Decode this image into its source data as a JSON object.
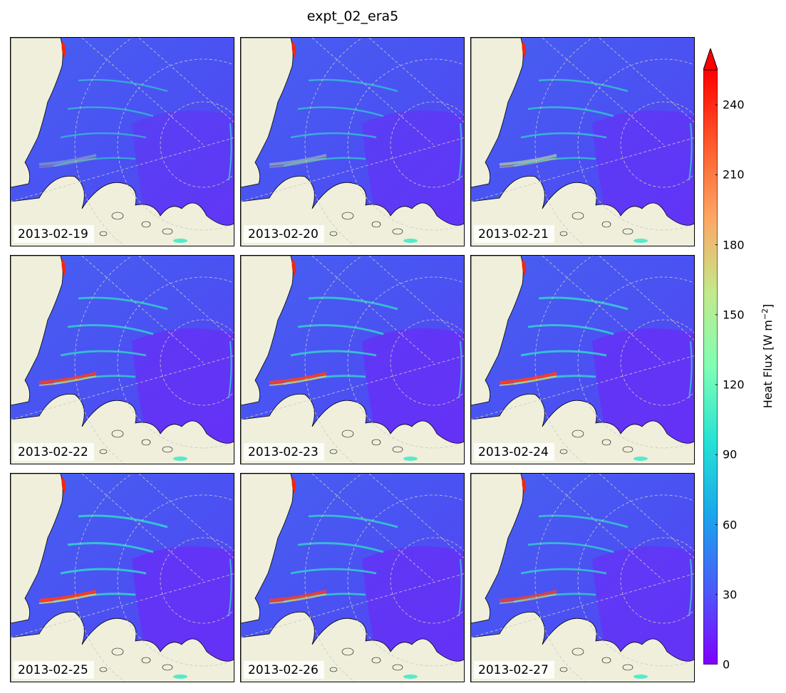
{
  "title": "expt_02_era5",
  "panels": [
    {
      "date": "2013-02-19",
      "intensity": 0.35
    },
    {
      "date": "2013-02-20",
      "intensity": 0.45
    },
    {
      "date": "2013-02-21",
      "intensity": 0.6
    },
    {
      "date": "2013-02-22",
      "intensity": 0.85
    },
    {
      "date": "2013-02-23",
      "intensity": 0.9
    },
    {
      "date": "2013-02-24",
      "intensity": 0.95
    },
    {
      "date": "2013-02-25",
      "intensity": 1.0
    },
    {
      "date": "2013-02-26",
      "intensity": 0.85
    },
    {
      "date": "2013-02-27",
      "intensity": 0.75
    }
  ],
  "colorbar": {
    "label": "Heat Flux [W m",
    "label_exp": "−2",
    "label_end": "]",
    "ticks": [
      "0",
      "30",
      "60",
      "90",
      "120",
      "150",
      "180",
      "210",
      "240"
    ],
    "tick_values": [
      0,
      30,
      60,
      90,
      120,
      150,
      180,
      210,
      240
    ],
    "min": 0,
    "max": 255,
    "extend": "max",
    "colormap": "rainbow"
  },
  "colors": {
    "land": "#efefdc",
    "ocean_base": "#4a52f2",
    "ocean_low": "#6a2cf7",
    "graticule": "#c8c8c8"
  }
}
